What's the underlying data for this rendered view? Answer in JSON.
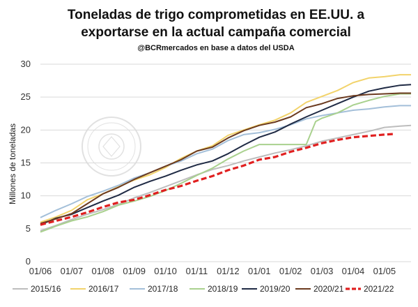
{
  "chart_data": {
    "type": "line",
    "title_lines": [
      "Toneladas de trigo comprometidas en EE.UU. a",
      "exportarse en la actual campaña comercial"
    ],
    "subtitle": "@BCRmercados en base a datos del USDA",
    "ylabel": "Millones de toneladas",
    "xlabel": "",
    "ylim": [
      0,
      30
    ],
    "yticks": [
      0,
      5,
      10,
      15,
      20,
      25,
      30
    ],
    "xlim": [
      0,
      11.85
    ],
    "xticks": [
      "01/06",
      "01/07",
      "01/08",
      "01/09",
      "01/10",
      "01/11",
      "01/12",
      "01/01",
      "01/02",
      "01/03",
      "01/04",
      "01/05"
    ],
    "grid": "horizontal",
    "legend_position": "bottom",
    "series": [
      {
        "name": "2015/16",
        "color": "#bdbdbd",
        "dashed": false,
        "x": [
          0,
          0.5,
          1,
          1.5,
          2,
          2.5,
          3,
          3.5,
          4,
          4.5,
          5,
          5.5,
          6,
          6.5,
          7,
          7.5,
          8,
          8.5,
          9,
          9.5,
          10,
          10.5,
          11,
          11.5,
          11.85
        ],
        "y": [
          4.7,
          5.5,
          6.4,
          7.2,
          7.9,
          8.7,
          9.7,
          10.5,
          11.4,
          12.3,
          13.2,
          14.0,
          14.6,
          15.3,
          15.9,
          16.5,
          17.0,
          17.6,
          18.3,
          18.8,
          19.3,
          19.8,
          20.4,
          20.6,
          20.7
        ]
      },
      {
        "name": "2016/17",
        "color": "#f2d36b",
        "dashed": false,
        "x": [
          0,
          0.5,
          1,
          1.5,
          2,
          2.5,
          3,
          3.5,
          4,
          4.5,
          5,
          5.5,
          6,
          6.5,
          7,
          7.5,
          8,
          8.5,
          9,
          9.5,
          10,
          10.5,
          11,
          11.5,
          11.85
        ],
        "y": [
          6.0,
          6.8,
          7.8,
          9.4,
          10.3,
          11.4,
          12.4,
          13.2,
          14.3,
          15.7,
          16.8,
          17.6,
          19.2,
          20.0,
          20.8,
          21.5,
          22.6,
          24.2,
          25.1,
          26.0,
          27.2,
          27.9,
          28.1,
          28.4,
          28.4
        ]
      },
      {
        "name": "2017/18",
        "color": "#a3bfd9",
        "dashed": false,
        "x": [
          0,
          0.5,
          1,
          1.5,
          2,
          2.5,
          3,
          3.5,
          4,
          4.5,
          5,
          5.5,
          6,
          6.5,
          7,
          7.5,
          8,
          8.5,
          9,
          9.5,
          10,
          10.5,
          11,
          11.5,
          11.85
        ],
        "y": [
          6.7,
          7.8,
          8.8,
          9.9,
          10.7,
          11.6,
          12.7,
          13.5,
          14.5,
          15.3,
          16.4,
          17.1,
          18.4,
          19.3,
          19.6,
          20.1,
          20.8,
          21.7,
          22.2,
          22.6,
          23.0,
          23.2,
          23.5,
          23.7,
          23.7
        ]
      },
      {
        "name": "2018/19",
        "color": "#a9d18e",
        "dashed": false,
        "x": [
          0,
          0.5,
          1,
          1.5,
          2,
          2.5,
          3,
          3.5,
          4,
          4.5,
          5,
          5.5,
          6,
          6.5,
          7,
          7.5,
          8,
          8.5,
          8.8,
          9,
          9.5,
          10,
          10.5,
          11,
          11.5,
          11.85
        ],
        "y": [
          4.5,
          5.4,
          6.2,
          6.8,
          7.6,
          8.6,
          9.2,
          9.9,
          10.8,
          11.9,
          13.1,
          14.2,
          15.6,
          16.8,
          17.8,
          17.8,
          17.8,
          17.8,
          21.3,
          21.8,
          22.6,
          23.8,
          24.5,
          25.1,
          25.5,
          25.5
        ]
      },
      {
        "name": "2019/20",
        "color": "#1f2a44",
        "dashed": false,
        "x": [
          0,
          0.5,
          1,
          1.5,
          2,
          2.5,
          3,
          3.5,
          4,
          4.5,
          5,
          5.5,
          6,
          6.5,
          7,
          7.5,
          8,
          8.5,
          9,
          9.5,
          10,
          10.5,
          11,
          11.5,
          11.85
        ],
        "y": [
          5.6,
          6.6,
          7.2,
          8.2,
          9.2,
          10.1,
          11.3,
          12.2,
          13.0,
          13.9,
          14.7,
          15.3,
          16.4,
          17.7,
          18.9,
          19.7,
          20.9,
          22.0,
          23.0,
          24.0,
          25.0,
          25.9,
          26.4,
          26.8,
          26.9
        ]
      },
      {
        "name": "2020/21",
        "color": "#6b3a1f",
        "dashed": false,
        "x": [
          0,
          0.5,
          1,
          1.5,
          2,
          2.5,
          3,
          3.5,
          4,
          4.5,
          5,
          5.5,
          6,
          6.5,
          7,
          7.5,
          8,
          8.5,
          9,
          9.5,
          10,
          10.5,
          11,
          11.5,
          11.85
        ],
        "y": [
          5.8,
          6.5,
          7.3,
          8.8,
          10.3,
          11.3,
          12.5,
          13.5,
          14.5,
          15.5,
          16.8,
          17.4,
          18.8,
          19.9,
          20.7,
          21.2,
          22.0,
          23.4,
          24.0,
          24.8,
          25.2,
          25.4,
          25.5,
          25.6,
          25.6
        ]
      },
      {
        "name": "2021/22",
        "color": "#e02020",
        "dashed": true,
        "x": [
          0,
          0.5,
          1,
          1.5,
          2,
          2.5,
          3,
          3.5,
          4,
          4.5,
          5,
          5.5,
          6,
          6.5,
          7,
          7.5,
          8,
          8.5,
          9,
          9.5,
          10,
          10.5,
          11,
          11.3
        ],
        "y": [
          5.6,
          6.2,
          6.8,
          7.5,
          8.3,
          9.0,
          9.4,
          10.1,
          10.9,
          11.5,
          12.3,
          13.0,
          13.9,
          14.6,
          15.5,
          15.9,
          16.7,
          17.3,
          18.0,
          18.5,
          18.9,
          19.1,
          19.3,
          19.4
        ]
      }
    ]
  }
}
